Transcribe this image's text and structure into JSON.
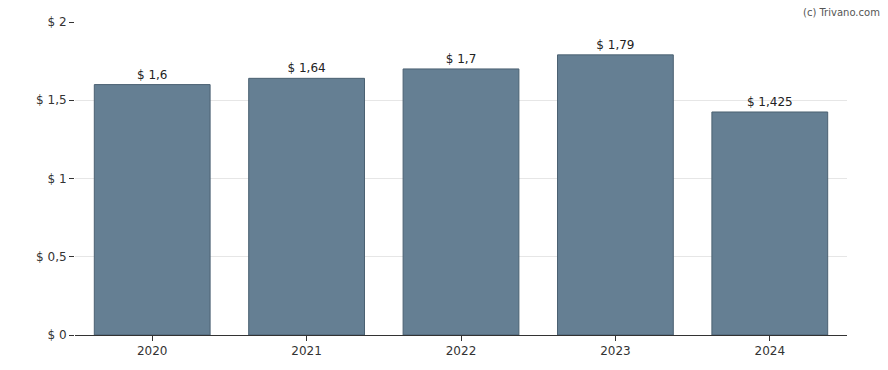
{
  "chart_data": {
    "type": "bar",
    "categories": [
      "2020",
      "2021",
      "2022",
      "2023",
      "2024"
    ],
    "values": [
      1.6,
      1.64,
      1.7,
      1.79,
      1.425
    ],
    "value_labels": [
      "$ 1,6",
      "$ 1,64",
      "$ 1,7",
      "$ 1,79",
      "$ 1,425"
    ],
    "data_labels": true,
    "color": "#657f93",
    "ylim": [
      0,
      2
    ],
    "yticks": [
      {
        "value": 0,
        "label": "$ 0"
      },
      {
        "value": 0.5,
        "label": "$ 0,5"
      },
      {
        "value": 1,
        "label": "$ 1"
      },
      {
        "value": 1.5,
        "label": "$ 1,5"
      },
      {
        "value": 2,
        "label": "$ 2"
      }
    ],
    "grid": true,
    "annotations": [
      "(c) Trivano.com"
    ]
  }
}
